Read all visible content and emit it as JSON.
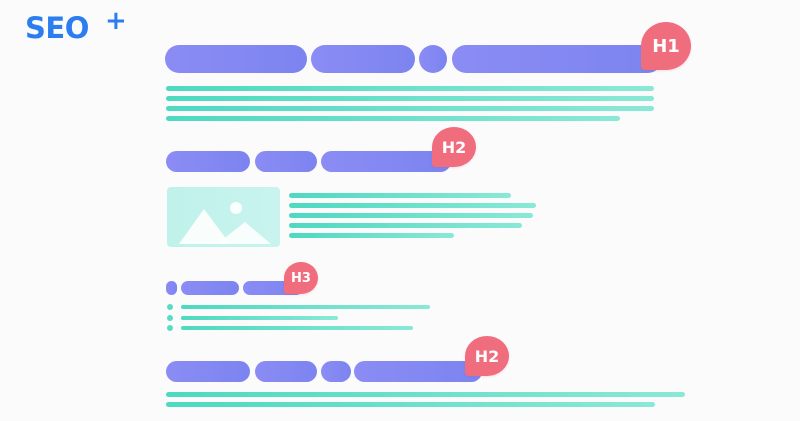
{
  "logo": {
    "text": "SEO",
    "plus": "+"
  },
  "headings": {
    "h1": "H1",
    "h2_first": "H2",
    "h3": "H3",
    "h2_second": "H2"
  },
  "colors": {
    "logo": "#2c7ef0",
    "heading_pill": "#8b8cf4",
    "text_line": "#4dd9c0",
    "tag": "#f06d7e",
    "image_placeholder": "#c3f2eb"
  },
  "icons": {
    "image_placeholder": "mountain-image-icon"
  }
}
